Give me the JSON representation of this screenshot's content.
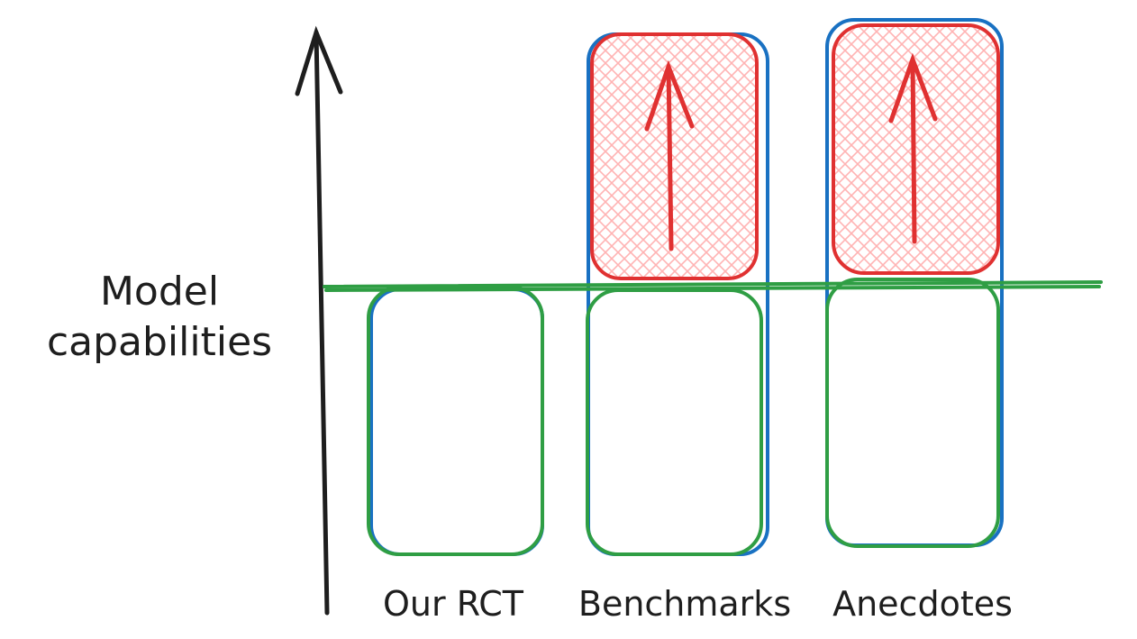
{
  "y_axis": {
    "label_line1": "Model",
    "label_line2": "capabilities"
  },
  "columns": [
    {
      "label": "Our RCT",
      "has_upper_box": false
    },
    {
      "label": "Benchmarks",
      "has_upper_box": true
    },
    {
      "label": "Anecdotes",
      "has_upper_box": true
    }
  ],
  "colors": {
    "axis": "#1e1e1e",
    "green": "#2f9e44",
    "blue": "#1971c2",
    "red": "#e03131",
    "hatch": "#ffc9c9"
  }
}
